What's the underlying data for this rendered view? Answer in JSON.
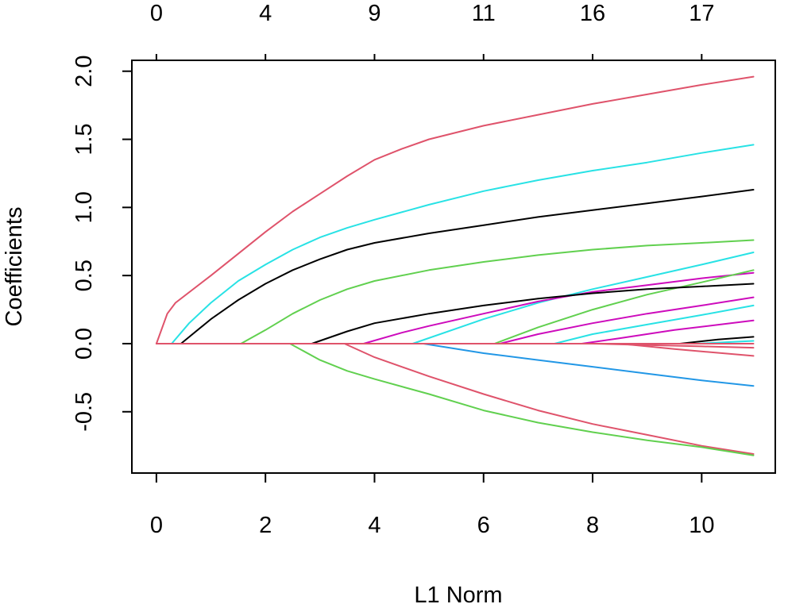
{
  "chart_data": {
    "type": "line",
    "title": "",
    "xlabel": "L1 Norm",
    "ylabel": "Coefficients",
    "xlim": [
      -0.45,
      11.35
    ],
    "ylim": [
      -0.95,
      2.08
    ],
    "grid": false,
    "legend": "none",
    "x_ticks": [
      0,
      2,
      4,
      6,
      8,
      10
    ],
    "x_tick_labels": [
      "0",
      "2",
      "4",
      "6",
      "8",
      "10"
    ],
    "y_ticks": [
      -0.5,
      0,
      0.5,
      1,
      1.5,
      2
    ],
    "y_tick_labels": [
      "-0.5",
      "0.0",
      "0.5",
      "1.0",
      "1.5",
      "2.0"
    ],
    "top_axis": {
      "ticks": [
        0,
        2,
        4,
        6,
        8,
        10
      ],
      "labels": [
        "0",
        "4",
        "9",
        "11",
        "16",
        "17"
      ]
    },
    "series": [
      {
        "color": "#DF536B",
        "points": [
          [
            0,
            0
          ],
          [
            0.2,
            0.22
          ],
          [
            0.35,
            0.3
          ],
          [
            1,
            0.5
          ],
          [
            1.5,
            0.66
          ],
          [
            2,
            0.82
          ],
          [
            2.5,
            0.97
          ],
          [
            3,
            1.1
          ],
          [
            3.5,
            1.23
          ],
          [
            4,
            1.35
          ],
          [
            4.5,
            1.43
          ],
          [
            5,
            1.5
          ],
          [
            6,
            1.6
          ],
          [
            7,
            1.68
          ],
          [
            8,
            1.76
          ],
          [
            9,
            1.83
          ],
          [
            10,
            1.9
          ],
          [
            10.95,
            1.96
          ]
        ]
      },
      {
        "color": "#28E2E5",
        "points": [
          [
            0.28,
            0
          ],
          [
            0.6,
            0.15
          ],
          [
            1,
            0.3
          ],
          [
            1.5,
            0.46
          ],
          [
            2,
            0.58
          ],
          [
            2.5,
            0.69
          ],
          [
            3,
            0.78
          ],
          [
            3.5,
            0.85
          ],
          [
            4,
            0.91
          ],
          [
            5,
            1.02
          ],
          [
            6,
            1.12
          ],
          [
            7,
            1.2
          ],
          [
            8,
            1.27
          ],
          [
            9,
            1.33
          ],
          [
            10,
            1.4
          ],
          [
            10.95,
            1.46
          ]
        ]
      },
      {
        "color": "#000000",
        "points": [
          [
            0.45,
            0
          ],
          [
            1,
            0.18
          ],
          [
            1.5,
            0.32
          ],
          [
            2,
            0.44
          ],
          [
            2.5,
            0.54
          ],
          [
            3,
            0.62
          ],
          [
            3.5,
            0.69
          ],
          [
            4,
            0.74
          ],
          [
            5,
            0.81
          ],
          [
            6,
            0.87
          ],
          [
            7,
            0.93
          ],
          [
            8,
            0.98
          ],
          [
            9,
            1.03
          ],
          [
            10,
            1.08
          ],
          [
            10.95,
            1.13
          ]
        ]
      },
      {
        "color": "#61D04F",
        "points": [
          [
            1.55,
            0
          ],
          [
            2,
            0.1
          ],
          [
            2.5,
            0.22
          ],
          [
            3,
            0.32
          ],
          [
            3.5,
            0.4
          ],
          [
            4,
            0.46
          ],
          [
            5,
            0.54
          ],
          [
            6,
            0.6
          ],
          [
            7,
            0.65
          ],
          [
            8,
            0.69
          ],
          [
            9,
            0.72
          ],
          [
            10,
            0.74
          ],
          [
            10.95,
            0.76
          ]
        ]
      },
      {
        "color": "#28E2E5",
        "points": [
          [
            4.7,
            0
          ],
          [
            6,
            0.18
          ],
          [
            7,
            0.3
          ],
          [
            8,
            0.4
          ],
          [
            9,
            0.49
          ],
          [
            10,
            0.58
          ],
          [
            10.95,
            0.67
          ]
        ]
      },
      {
        "color": "#CD0BBC",
        "points": [
          [
            3.8,
            0
          ],
          [
            4.5,
            0.08
          ],
          [
            5,
            0.13
          ],
          [
            6,
            0.22
          ],
          [
            7,
            0.31
          ],
          [
            8,
            0.38
          ],
          [
            9,
            0.43
          ],
          [
            10,
            0.48
          ],
          [
            10.95,
            0.52
          ]
        ]
      },
      {
        "color": "#61D04F",
        "points": [
          [
            6.2,
            0
          ],
          [
            7,
            0.12
          ],
          [
            8,
            0.25
          ],
          [
            9,
            0.36
          ],
          [
            10,
            0.45
          ],
          [
            10.95,
            0.54
          ]
        ]
      },
      {
        "color": "#000000",
        "points": [
          [
            2.85,
            0
          ],
          [
            3.5,
            0.09
          ],
          [
            4,
            0.15
          ],
          [
            5,
            0.22
          ],
          [
            6,
            0.28
          ],
          [
            7,
            0.33
          ],
          [
            8,
            0.37
          ],
          [
            9,
            0.4
          ],
          [
            10,
            0.42
          ],
          [
            10.95,
            0.44
          ]
        ]
      },
      {
        "color": "#CD0BBC",
        "points": [
          [
            6.3,
            0
          ],
          [
            7,
            0.07
          ],
          [
            8,
            0.15
          ],
          [
            9,
            0.22
          ],
          [
            10,
            0.28
          ],
          [
            10.95,
            0.34
          ]
        ]
      },
      {
        "color": "#28E2E5",
        "points": [
          [
            7.3,
            0
          ],
          [
            8,
            0.07
          ],
          [
            9,
            0.14
          ],
          [
            10,
            0.21
          ],
          [
            10.95,
            0.28
          ]
        ]
      },
      {
        "color": "#CD0BBC",
        "points": [
          [
            7.8,
            0
          ],
          [
            8.5,
            0.04
          ],
          [
            9.5,
            0.1
          ],
          [
            10.95,
            0.17
          ]
        ]
      },
      {
        "color": "#000000",
        "points": [
          [
            9.6,
            0
          ],
          [
            10.3,
            0.03
          ],
          [
            10.95,
            0.05
          ]
        ]
      },
      {
        "color": "#28E2E5",
        "points": [
          [
            9.9,
            0
          ],
          [
            10.95,
            0.02
          ]
        ]
      },
      {
        "color": "#DF536B",
        "points": [
          [
            8.0,
            0
          ],
          [
            9,
            -0.01
          ],
          [
            10,
            -0.02
          ],
          [
            10.95,
            -0.03
          ]
        ]
      },
      {
        "color": "#DF536B",
        "points": [
          [
            8.5,
            0
          ],
          [
            9.5,
            -0.04
          ],
          [
            10.95,
            -0.09
          ]
        ]
      },
      {
        "color": "#2297E6",
        "points": [
          [
            4.9,
            0
          ],
          [
            6,
            -0.07
          ],
          [
            7,
            -0.12
          ],
          [
            8,
            -0.17
          ],
          [
            9,
            -0.22
          ],
          [
            10,
            -0.27
          ],
          [
            10.95,
            -0.31
          ]
        ]
      },
      {
        "color": "#DF536B",
        "points": [
          [
            3.45,
            0
          ],
          [
            4,
            -0.1
          ],
          [
            5,
            -0.24
          ],
          [
            6,
            -0.37
          ],
          [
            7,
            -0.49
          ],
          [
            8,
            -0.59
          ],
          [
            9,
            -0.67
          ],
          [
            10,
            -0.75
          ],
          [
            10.95,
            -0.81
          ]
        ]
      },
      {
        "color": "#61D04F",
        "points": [
          [
            2.45,
            0
          ],
          [
            3,
            -0.12
          ],
          [
            3.5,
            -0.2
          ],
          [
            4,
            -0.26
          ],
          [
            5,
            -0.37
          ],
          [
            6,
            -0.49
          ],
          [
            7,
            -0.58
          ],
          [
            8,
            -0.65
          ],
          [
            9,
            -0.71
          ],
          [
            10,
            -0.76
          ],
          [
            10.95,
            -0.82
          ]
        ]
      },
      {
        "color": "#DF536B",
        "points": [
          [
            0,
            0
          ],
          [
            10.95,
            0
          ]
        ]
      }
    ]
  }
}
